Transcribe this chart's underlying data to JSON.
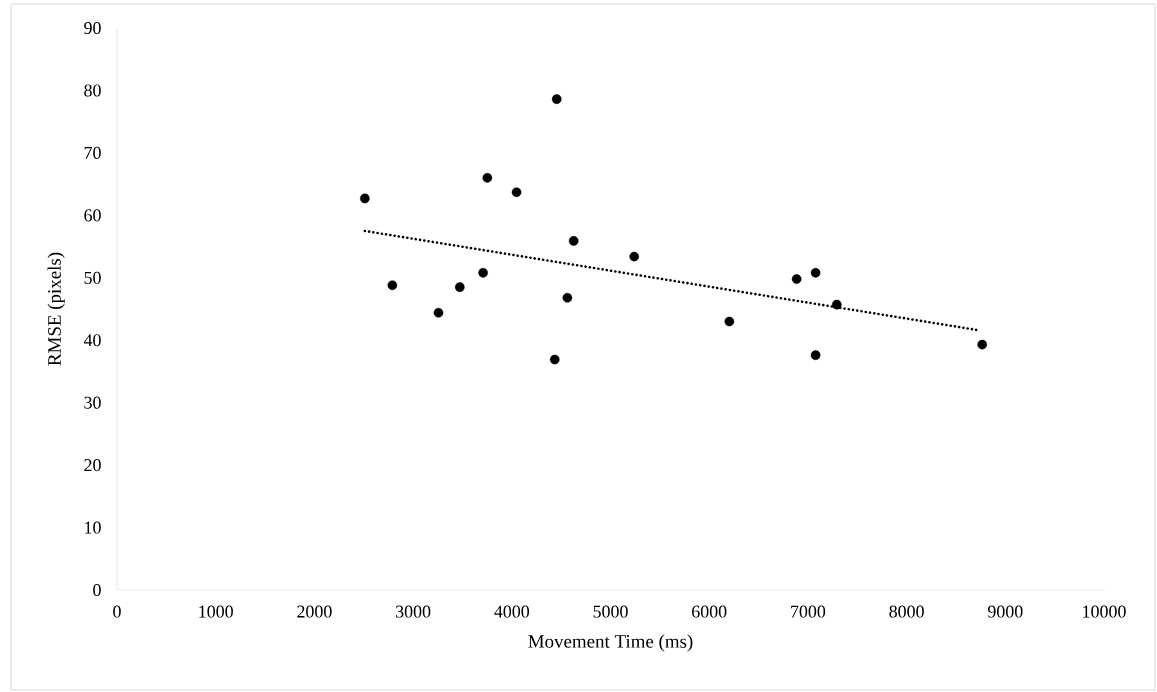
{
  "chart_data": {
    "type": "scatter",
    "xlabel": "Movement Time (ms)",
    "ylabel": "RMSE (pixels)",
    "xlim": [
      0,
      10000
    ],
    "xticks": [
      0,
      1000,
      2000,
      3000,
      4000,
      5000,
      6000,
      7000,
      8000,
      9000,
      10000
    ],
    "ylim": [
      0,
      90
    ],
    "yticks": [
      0,
      10,
      20,
      30,
      40,
      50,
      60,
      70,
      80,
      90
    ],
    "grid": false,
    "series": [
      {
        "color": "#000000",
        "marker": "circle",
        "x": [
          2511,
          2790,
          3257,
          3473,
          3709,
          3752,
          4048,
          4455,
          4435,
          4563,
          4627,
          5240,
          6204,
          6886,
          7078,
          7078,
          7293,
          8766
        ],
        "values": [
          62.7,
          48.8,
          44.4,
          48.5,
          50.8,
          66.0,
          63.7,
          78.6,
          36.9,
          46.8,
          55.9,
          53.4,
          43.0,
          49.8,
          50.8,
          37.6,
          45.7,
          39.3
        ]
      },
      {
        "type": "line",
        "color": "#000000",
        "line_style": "dotted",
        "x": [
          2511,
          8730
        ],
        "values": [
          57.5,
          41.6
        ]
      }
    ]
  }
}
